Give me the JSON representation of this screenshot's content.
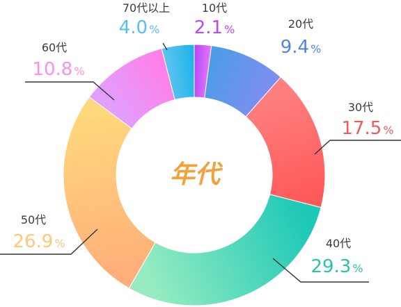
{
  "chart_data": {
    "type": "pie",
    "title": "年代",
    "categories": [
      "10代",
      "20代",
      "30代",
      "40代",
      "50代",
      "60代",
      "70代以上"
    ],
    "values": [
      2.1,
      9.4,
      17.5,
      29.3,
      26.9,
      10.8,
      4.0
    ],
    "value_labels": [
      "2.1",
      "9.4",
      "17.5",
      "29.3",
      "26.9",
      "10.8",
      "4.0"
    ],
    "unit": "%",
    "donut": true,
    "legend": "none",
    "colors": [
      [
        "#b44cf0",
        "#e070ff"
      ],
      [
        "#4e9be8",
        "#7b8ff0"
      ],
      [
        "#ff7f7f",
        "#ff5a5a"
      ],
      [
        "#1fc9b8",
        "#96ecc0"
      ],
      [
        "#ffb07a",
        "#ffd77c"
      ],
      [
        "#e0a0ff",
        "#ff80e8"
      ],
      [
        "#5cc2f0",
        "#1fb6e8"
      ]
    ],
    "label_colors": [
      "#b44cf0",
      "#4e86dc",
      "#f05a5a",
      "#29c3a8",
      "#ffc77a",
      "#ff8fe6",
      "#55c0ea"
    ]
  }
}
